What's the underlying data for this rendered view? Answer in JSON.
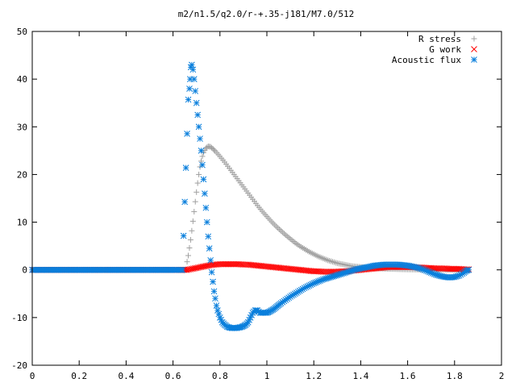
{
  "chart_data": {
    "type": "scatter",
    "title": "m2/n1.5/q2.0/r-+.35-j181/M7.0/512",
    "xlabel": "",
    "ylabel": "",
    "xlim": [
      0,
      2
    ],
    "ylim": [
      -20,
      50
    ],
    "x_ticks": [
      "0",
      "0.2",
      "0.4",
      "0.6",
      "0.8",
      "1",
      "1.2",
      "1.4",
      "1.6",
      "1.8",
      "2"
    ],
    "y_ticks": [
      "-20",
      "-10",
      "0",
      "10",
      "20",
      "30",
      "40",
      "50"
    ],
    "legend_position": "top-right",
    "series": [
      {
        "name": "R stress",
        "color": "#a0a0a0",
        "marker": "plus",
        "x": [
          0,
          0.1,
          0.2,
          0.3,
          0.4,
          0.5,
          0.6,
          0.655,
          0.66,
          0.665,
          0.67,
          0.675,
          0.68,
          0.685,
          0.69,
          0.695,
          0.7,
          0.705,
          0.71,
          0.715,
          0.72,
          0.725,
          0.73,
          0.74,
          0.75,
          0.76,
          0.77,
          0.78,
          0.8,
          0.82,
          0.84,
          0.86,
          0.88,
          0.9,
          0.92,
          0.94,
          0.96,
          0.98,
          1.0,
          1.02,
          1.04,
          1.06,
          1.08,
          1.1,
          1.12,
          1.14,
          1.16,
          1.18,
          1.2,
          1.22,
          1.24,
          1.26,
          1.28,
          1.3,
          1.32,
          1.34,
          1.36,
          1.38,
          1.4,
          1.42,
          1.44,
          1.46,
          1.48,
          1.5,
          1.52,
          1.54,
          1.56,
          1.58,
          1.6,
          1.62,
          1.64,
          1.66,
          1.68,
          1.7,
          1.72,
          1.74,
          1.76,
          1.78,
          1.8,
          1.82,
          1.84,
          1.86
        ],
        "y": [
          0,
          0,
          0,
          0,
          0,
          0,
          0,
          0,
          1.7,
          3.0,
          4.6,
          6.3,
          8.2,
          10.2,
          12.2,
          14.3,
          16.3,
          18.2,
          20.0,
          21.6,
          22.8,
          23.8,
          24.6,
          25.5,
          25.9,
          25.8,
          25.4,
          24.9,
          23.8,
          22.6,
          21.3,
          20.0,
          18.7,
          17.4,
          16.1,
          14.8,
          13.5,
          12.3,
          11.2,
          10.1,
          9.1,
          8.2,
          7.3,
          6.5,
          5.7,
          5.0,
          4.4,
          3.8,
          3.3,
          2.8,
          2.4,
          2.0,
          1.7,
          1.4,
          1.2,
          1.0,
          0.8,
          0.7,
          0.6,
          0.5,
          0.4,
          0.35,
          0.3,
          0.25,
          0.2,
          0.18,
          0.15,
          0.12,
          0.1,
          0.08,
          0.06,
          0.05,
          0.04,
          0.03,
          0.02,
          0.02,
          0.01,
          0.01,
          0.0,
          0.0,
          0.0,
          0.0
        ]
      },
      {
        "name": "G work",
        "color": "#ff0000",
        "marker": "cross",
        "x": [
          0,
          0.1,
          0.2,
          0.3,
          0.4,
          0.5,
          0.6,
          0.66,
          0.68,
          0.7,
          0.72,
          0.74,
          0.76,
          0.78,
          0.8,
          0.82,
          0.84,
          0.86,
          0.88,
          0.9,
          0.92,
          0.94,
          0.96,
          0.98,
          1.0,
          1.02,
          1.04,
          1.06,
          1.08,
          1.1,
          1.12,
          1.14,
          1.16,
          1.18,
          1.2,
          1.22,
          1.24,
          1.26,
          1.28,
          1.3,
          1.32,
          1.34,
          1.36,
          1.38,
          1.4,
          1.42,
          1.44,
          1.46,
          1.48,
          1.5,
          1.52,
          1.54,
          1.56,
          1.58,
          1.6,
          1.62,
          1.64,
          1.66,
          1.68,
          1.7,
          1.72,
          1.74,
          1.76,
          1.78,
          1.8,
          1.82,
          1.84,
          1.86
        ],
        "y": [
          0,
          0,
          0,
          0,
          0,
          0,
          0,
          0,
          0.2,
          0.4,
          0.6,
          0.8,
          1.0,
          1.1,
          1.2,
          1.2,
          1.2,
          1.2,
          1.2,
          1.1,
          1.1,
          1.0,
          0.9,
          0.8,
          0.7,
          0.6,
          0.5,
          0.4,
          0.3,
          0.2,
          0.1,
          0.0,
          -0.1,
          -0.2,
          -0.3,
          -0.3,
          -0.4,
          -0.4,
          -0.4,
          -0.4,
          -0.3,
          -0.3,
          -0.2,
          -0.1,
          0.0,
          0.1,
          0.2,
          0.3,
          0.4,
          0.5,
          0.6,
          0.6,
          0.6,
          0.6,
          0.6,
          0.6,
          0.5,
          0.5,
          0.4,
          0.4,
          0.3,
          0.3,
          0.3,
          0.2,
          0.2,
          0.2,
          0.1,
          0.1
        ]
      },
      {
        "name": "Acoustic flux",
        "color": "#0a7fdc",
        "marker": "star",
        "x": [
          0,
          0.05,
          0.1,
          0.15,
          0.2,
          0.25,
          0.3,
          0.35,
          0.4,
          0.45,
          0.5,
          0.55,
          0.6,
          0.64,
          0.655,
          0.665,
          0.67,
          0.673,
          0.676,
          0.68,
          0.685,
          0.69,
          0.695,
          0.7,
          0.705,
          0.71,
          0.715,
          0.72,
          0.725,
          0.73,
          0.735,
          0.74,
          0.745,
          0.75,
          0.755,
          0.76,
          0.765,
          0.77,
          0.775,
          0.78,
          0.785,
          0.79,
          0.8,
          0.81,
          0.82,
          0.83,
          0.84,
          0.85,
          0.86,
          0.87,
          0.88,
          0.89,
          0.9,
          0.91,
          0.92,
          0.93,
          0.94,
          0.95,
          0.96,
          0.97,
          0.98,
          0.99,
          1.0,
          1.01,
          1.02,
          1.03,
          1.04,
          1.05,
          1.06,
          1.08,
          1.1,
          1.12,
          1.14,
          1.16,
          1.18,
          1.2,
          1.22,
          1.24,
          1.26,
          1.28,
          1.3,
          1.32,
          1.34,
          1.36,
          1.38,
          1.4,
          1.42,
          1.44,
          1.46,
          1.48,
          1.5,
          1.52,
          1.54,
          1.56,
          1.58,
          1.6,
          1.62,
          1.64,
          1.66,
          1.68,
          1.7,
          1.72,
          1.74,
          1.76,
          1.78,
          1.8,
          1.82,
          1.84,
          1.85,
          1.86
        ],
        "y": [
          0,
          0,
          0,
          0,
          0,
          0,
          0,
          0,
          0,
          0,
          0,
          0,
          0,
          0,
          21.4,
          35.7,
          38.0,
          40.0,
          42.5,
          43.0,
          42.0,
          40.0,
          37.5,
          35.0,
          32.5,
          30.0,
          27.5,
          25.0,
          22.0,
          19.0,
          16.0,
          13.0,
          10.0,
          7.0,
          4.5,
          2.0,
          -0.5,
          -2.5,
          -4.5,
          -6.0,
          -7.5,
          -8.5,
          -10.0,
          -11.0,
          -11.5,
          -11.9,
          -12.1,
          -12.2,
          -12.2,
          -12.2,
          -12.1,
          -12.0,
          -11.8,
          -11.5,
          -11.0,
          -10.0,
          -9.0,
          -8.5,
          -8.5,
          -9.0,
          -9.0,
          -9.0,
          -9.0,
          -8.8,
          -8.5,
          -8.2,
          -7.8,
          -7.4,
          -7.0,
          -6.3,
          -5.6,
          -5.0,
          -4.4,
          -3.8,
          -3.3,
          -2.8,
          -2.4,
          -2.0,
          -1.7,
          -1.4,
          -1.1,
          -0.8,
          -0.5,
          -0.2,
          0.1,
          0.3,
          0.5,
          0.7,
          0.9,
          1.0,
          1.1,
          1.1,
          1.1,
          1.1,
          1.0,
          0.9,
          0.7,
          0.5,
          0.2,
          -0.2,
          -0.6,
          -1.0,
          -1.3,
          -1.5,
          -1.6,
          -1.5,
          -1.2,
          -0.6,
          -0.2,
          0.0
        ]
      }
    ]
  }
}
